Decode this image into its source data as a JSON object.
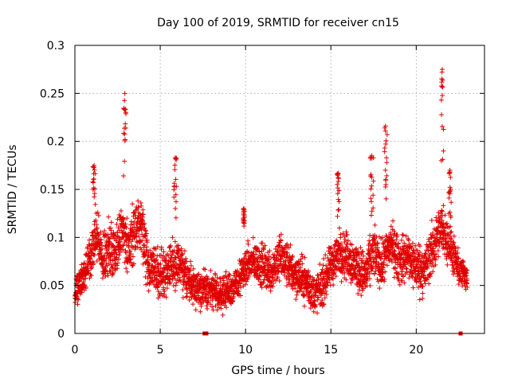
{
  "chart_data": {
    "type": "scatter",
    "title": "Day 100 of 2019, SRMTID for receiver cn15",
    "xlabel": "GPS time / hours",
    "ylabel": "SRMTID / TECUs",
    "xlim": [
      0,
      24
    ],
    "ylim": [
      0,
      0.3
    ],
    "xticks": [
      0,
      5,
      10,
      15,
      20
    ],
    "xtick_labels": [
      "0",
      "5",
      "10",
      "15",
      "20"
    ],
    "yticks": [
      0,
      0.05,
      0.1,
      0.15,
      0.2,
      0.25,
      0.3
    ],
    "ytick_labels": [
      "0",
      "0.05",
      "0.1",
      "0.15",
      "0.2",
      "0.25",
      "0.3"
    ],
    "grid": true,
    "marker": "plus",
    "color": "#e00000",
    "trend": [
      [
        0.0,
        0.04
      ],
      [
        0.2,
        0.055
      ],
      [
        0.5,
        0.06
      ],
      [
        0.8,
        0.075
      ],
      [
        1.0,
        0.09
      ],
      [
        1.3,
        0.1
      ],
      [
        1.6,
        0.08
      ],
      [
        2.0,
        0.085
      ],
      [
        2.4,
        0.09
      ],
      [
        2.8,
        0.11
      ],
      [
        3.1,
        0.085
      ],
      [
        3.5,
        0.11
      ],
      [
        3.9,
        0.11
      ],
      [
        4.3,
        0.07
      ],
      [
        5.0,
        0.06
      ],
      [
        5.5,
        0.07
      ],
      [
        6.0,
        0.075
      ],
      [
        6.5,
        0.06
      ],
      [
        7.0,
        0.05
      ],
      [
        7.5,
        0.045
      ],
      [
        8.0,
        0.045
      ],
      [
        8.5,
        0.04
      ],
      [
        9.0,
        0.045
      ],
      [
        9.5,
        0.05
      ],
      [
        10.0,
        0.07
      ],
      [
        10.5,
        0.075
      ],
      [
        11.0,
        0.07
      ],
      [
        11.5,
        0.065
      ],
      [
        12.0,
        0.08
      ],
      [
        12.5,
        0.07
      ],
      [
        13.0,
        0.06
      ],
      [
        13.5,
        0.055
      ],
      [
        14.0,
        0.04
      ],
      [
        14.5,
        0.05
      ],
      [
        15.0,
        0.07
      ],
      [
        15.5,
        0.085
      ],
      [
        16.0,
        0.08
      ],
      [
        16.5,
        0.07
      ],
      [
        17.0,
        0.06
      ],
      [
        17.5,
        0.085
      ],
      [
        18.0,
        0.07
      ],
      [
        18.5,
        0.095
      ],
      [
        19.0,
        0.075
      ],
      [
        19.5,
        0.08
      ],
      [
        20.0,
        0.07
      ],
      [
        20.5,
        0.065
      ],
      [
        21.0,
        0.09
      ],
      [
        21.5,
        0.11
      ],
      [
        22.0,
        0.09
      ],
      [
        22.5,
        0.065
      ],
      [
        23.0,
        0.06
      ]
    ],
    "spread": [
      [
        0.0,
        0.025
      ],
      [
        2.0,
        0.04
      ],
      [
        4.0,
        0.04
      ],
      [
        7.0,
        0.03
      ],
      [
        9.0,
        0.025
      ],
      [
        12.0,
        0.035
      ],
      [
        14.0,
        0.03
      ],
      [
        16.0,
        0.035
      ],
      [
        19.0,
        0.035
      ],
      [
        21.0,
        0.04
      ],
      [
        23.0,
        0.02
      ]
    ],
    "density_per_hour": 140,
    "spikes": [
      {
        "x": [
          2.85,
          3.0
        ],
        "y": [
          0.12,
          0.25
        ]
      },
      {
        "x": [
          1.05,
          1.2
        ],
        "y": [
          0.13,
          0.175
        ]
      },
      {
        "x": [
          5.8,
          5.95
        ],
        "y": [
          0.12,
          0.183
        ]
      },
      {
        "x": [
          9.85,
          9.95
        ],
        "y": [
          0.11,
          0.13
        ]
      },
      {
        "x": [
          15.35,
          15.5
        ],
        "y": [
          0.12,
          0.167
        ]
      },
      {
        "x": [
          17.3,
          17.5
        ],
        "y": [
          0.12,
          0.185
        ]
      },
      {
        "x": [
          18.1,
          18.3
        ],
        "y": [
          0.13,
          0.216
        ]
      },
      {
        "x": [
          21.45,
          21.6
        ],
        "y": [
          0.13,
          0.275
        ]
      },
      {
        "x": [
          21.9,
          22.05
        ],
        "y": [
          0.12,
          0.17
        ]
      }
    ],
    "zero_marks_x": [
      7.6,
      7.7,
      22.6
    ]
  }
}
